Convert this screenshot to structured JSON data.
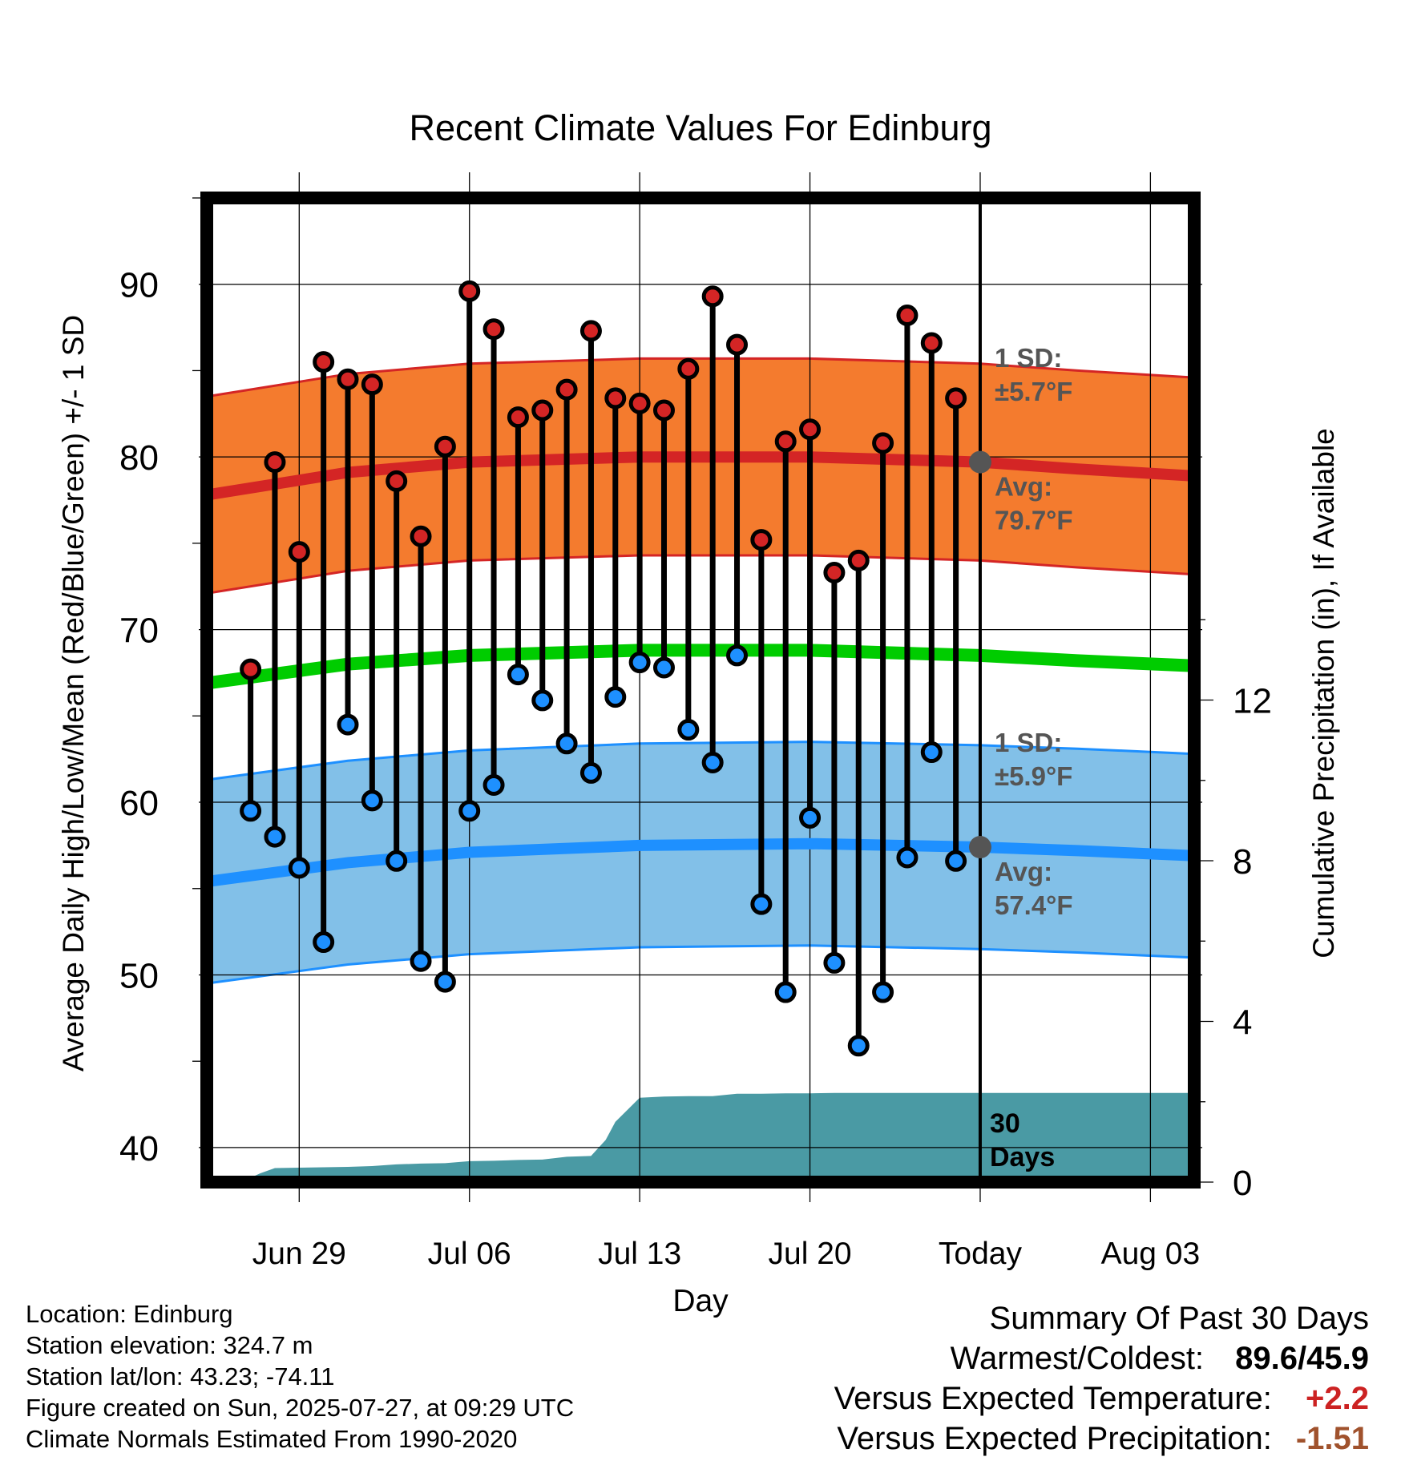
{
  "chart_data": {
    "type": "line",
    "title": "Recent Climate Values For Edinburg",
    "xlabel": "Day",
    "ylabel": "Average Daily High/Low/Mean (Red/Blue/Green) +/- 1 SD",
    "y2label": "Cumulative Precipitation (in), If Available",
    "ylim": [
      38,
      95
    ],
    "y2lim": [
      0,
      24.5
    ],
    "yticks": [
      "40",
      "50",
      "60",
      "70",
      "80",
      "90"
    ],
    "y2ticks": [
      "0",
      "4",
      "8",
      "12"
    ],
    "x_tick_labels": [
      "Jun 29",
      "Jul 06",
      "Jul 13",
      "Jul 20",
      "Today",
      "Aug 03"
    ],
    "x_tick_days": [
      2,
      9,
      16,
      23,
      30,
      37
    ],
    "xlim": [
      -1.8,
      38.8
    ],
    "today_day": 30,
    "grid": true,
    "high_normal": {
      "avg_days": [
        -1.8,
        4,
        9,
        16,
        23,
        30,
        34,
        38.8
      ],
      "avg": [
        77.8,
        79.1,
        79.7,
        80.0,
        80.0,
        79.7,
        79.3,
        78.9
      ],
      "sd": 5.7,
      "sd_label": "1 SD:",
      "sd_value": "±5.7°F",
      "avg_label": "Avg:",
      "avg_value": "79.7°F",
      "avg_marker": 79.7
    },
    "mean_normal": {
      "days": [
        -1.8,
        4,
        9,
        16,
        23,
        30,
        34,
        38.8
      ],
      "values": [
        66.9,
        68.0,
        68.5,
        68.8,
        68.8,
        68.5,
        68.2,
        67.9
      ]
    },
    "low_normal": {
      "avg_days": [
        -1.8,
        4,
        9,
        16,
        23,
        30,
        34,
        38.8
      ],
      "avg": [
        55.4,
        56.5,
        57.1,
        57.5,
        57.6,
        57.4,
        57.2,
        56.9
      ],
      "sd": 5.9,
      "sd_label": "1 SD:",
      "sd_value": "±5.9°F",
      "avg_label": "Avg:",
      "avg_value": "57.4°F",
      "avg_marker": 57.4
    },
    "days": [
      0,
      1,
      2,
      3,
      4,
      5,
      6,
      7,
      8,
      9,
      10,
      11,
      12,
      13,
      14,
      15,
      16,
      17,
      18,
      19,
      20,
      21,
      22,
      23,
      24,
      25,
      26,
      27,
      28,
      29
    ],
    "highs": [
      67.7,
      79.7,
      74.5,
      85.5,
      84.5,
      84.2,
      78.6,
      75.4,
      80.6,
      89.6,
      87.4,
      82.3,
      82.7,
      83.9,
      87.3,
      83.4,
      83.1,
      82.7,
      85.1,
      89.3,
      86.5,
      75.2,
      80.9,
      81.6,
      73.3,
      74.0,
      80.8,
      88.2,
      86.6,
      83.4
    ],
    "lows": [
      59.5,
      58.0,
      56.2,
      51.9,
      64.5,
      60.1,
      56.6,
      50.8,
      49.6,
      59.5,
      61.0,
      67.4,
      65.9,
      63.4,
      61.7,
      66.1,
      68.1,
      67.8,
      64.2,
      62.3,
      68.5,
      54.1,
      49.0,
      59.1,
      50.7,
      45.9,
      49.0,
      56.8,
      62.9,
      56.6
    ],
    "precip_days": [
      -0.4,
      0.4,
      1,
      2,
      3,
      4,
      5,
      6,
      7,
      8,
      9,
      10,
      11,
      12,
      13,
      14,
      14.6,
      15,
      16,
      17,
      18,
      19,
      20,
      21,
      22,
      23,
      24,
      25,
      26,
      27,
      28,
      29,
      30,
      38.8
    ],
    "precip": [
      0.0,
      0.22,
      0.35,
      0.36,
      0.37,
      0.38,
      0.4,
      0.44,
      0.46,
      0.47,
      0.52,
      0.53,
      0.55,
      0.56,
      0.63,
      0.65,
      1.05,
      1.5,
      2.1,
      2.13,
      2.14,
      2.14,
      2.2,
      2.2,
      2.21,
      2.21,
      2.22,
      2.22,
      2.22,
      2.22,
      2.22,
      2.22,
      2.22,
      2.22
    ],
    "precip_window_label": "30 Days",
    "colors": {
      "high_band": "#f47b2e",
      "high_line": "#d42525",
      "low_band": "#82c0e8",
      "low_line": "#1e90ff",
      "mean_line": "#00cc00",
      "precip": "#4a9aa4",
      "high_dot": "#d42525",
      "low_dot": "#1e90ff",
      "annotation": "#555555"
    }
  },
  "footer": {
    "location": "Location: Edinburg",
    "elevation": "Station elevation: 324.7 m",
    "latlon": "Station lat/lon: 43.23; -74.11",
    "created": "Figure created on Sun, 2025-07-27, at 09:29 UTC",
    "normals": "Climate Normals Estimated From 1990-2020"
  },
  "summary": {
    "title": "Summary Of Past 30 Days",
    "warm_cold_label": "Warmest/Coldest:",
    "warm_cold_value": "89.6/45.9",
    "temp_label": "Versus Expected Temperature:",
    "temp_value": "+2.2",
    "temp_color": "#cc2222",
    "precip_label": "Versus Expected Precipitation:",
    "precip_value": "-1.51",
    "precip_color": "#a0522d"
  }
}
